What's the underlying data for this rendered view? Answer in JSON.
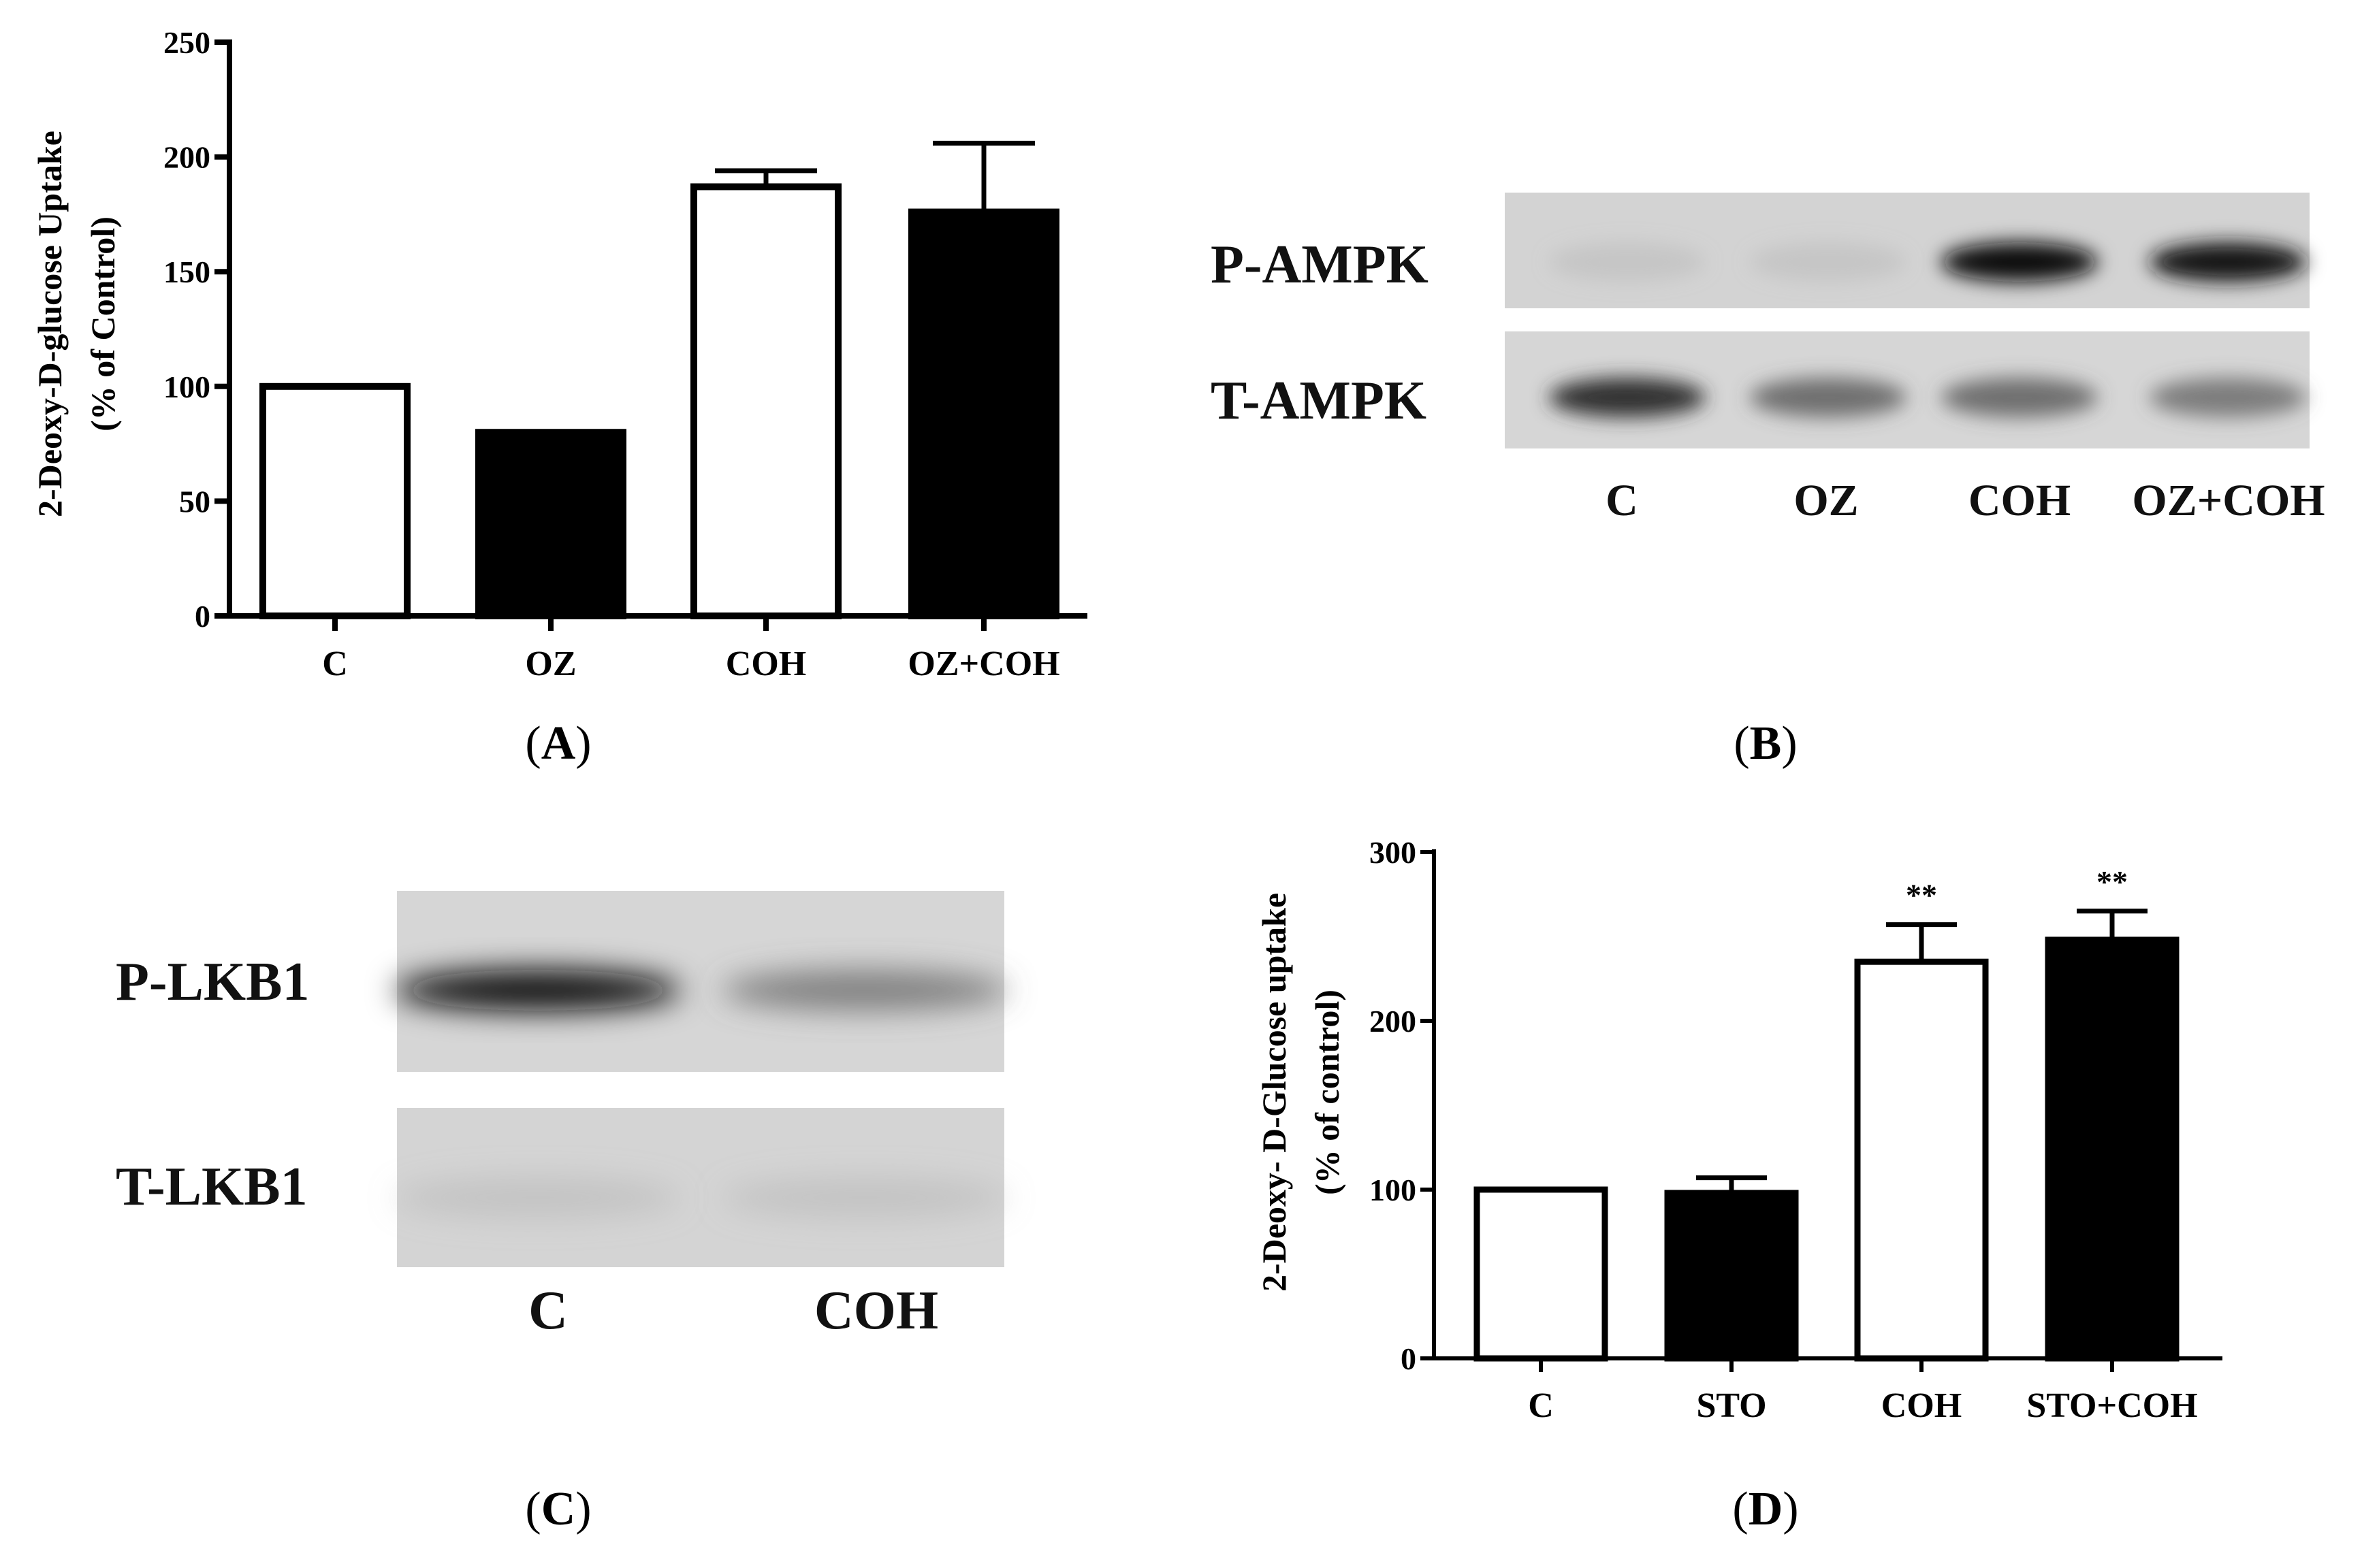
{
  "chart_data": [
    {
      "panel": "A",
      "type": "bar",
      "categories": [
        "C",
        "OZ",
        "COH",
        "OZ+COH"
      ],
      "values": [
        100,
        80,
        187,
        176
      ],
      "errors": [
        0,
        0,
        7,
        30
      ],
      "fills": [
        "white",
        "black",
        "white",
        "black"
      ],
      "ylabel": "2-Deoxy-D-glucose Uptake",
      "ylabel2": "(% of Control)",
      "ylim": [
        0,
        250
      ],
      "yticks": [
        0,
        50,
        100,
        150,
        200,
        250
      ],
      "ytick_labels": [
        "0",
        "50",
        "100",
        "150",
        "200",
        "250"
      ],
      "grid": false
    },
    {
      "panel": "D",
      "type": "bar",
      "categories": [
        "C",
        "STO",
        "COH",
        "STO+COH"
      ],
      "values": [
        100,
        98,
        235,
        248
      ],
      "errors": [
        0,
        9,
        22,
        17
      ],
      "fills": [
        "white",
        "black",
        "white",
        "black"
      ],
      "significance": [
        "",
        "",
        "**",
        "**"
      ],
      "ylabel": "2-Deoxy- D-Glucose uptake",
      "ylabel2": "(% of control)",
      "ylim": [
        0,
        300
      ],
      "yticks": [
        0,
        100,
        200,
        300
      ],
      "ytick_labels": [
        "0",
        "100",
        "200",
        "300"
      ],
      "grid": false
    }
  ],
  "blots": {
    "B": {
      "rows": [
        {
          "label": "P-AMPK",
          "intensities": [
            0.1,
            0.1,
            0.95,
            0.9
          ]
        },
        {
          "label": "T-AMPK",
          "intensities": [
            0.75,
            0.55,
            0.55,
            0.5
          ]
        }
      ],
      "lanes": [
        "C",
        "OZ",
        "COH",
        "OZ+COH"
      ]
    },
    "C": {
      "rows": [
        {
          "label": "P-LKB1",
          "intensities": [
            0.95,
            0.5
          ]
        },
        {
          "label": "T-LKB1",
          "intensities": [
            0.15,
            0.15
          ]
        }
      ],
      "lanes": [
        "C",
        "COH"
      ]
    }
  },
  "panel_labels": {
    "A": {
      "open": "(",
      "letter": "A",
      "close": ")"
    },
    "B": {
      "open": "(",
      "letter": "B",
      "close": ")"
    },
    "C": {
      "open": "(",
      "letter": "C",
      "close": ")"
    },
    "D": {
      "open": "(",
      "letter": "D",
      "close": ")"
    }
  }
}
